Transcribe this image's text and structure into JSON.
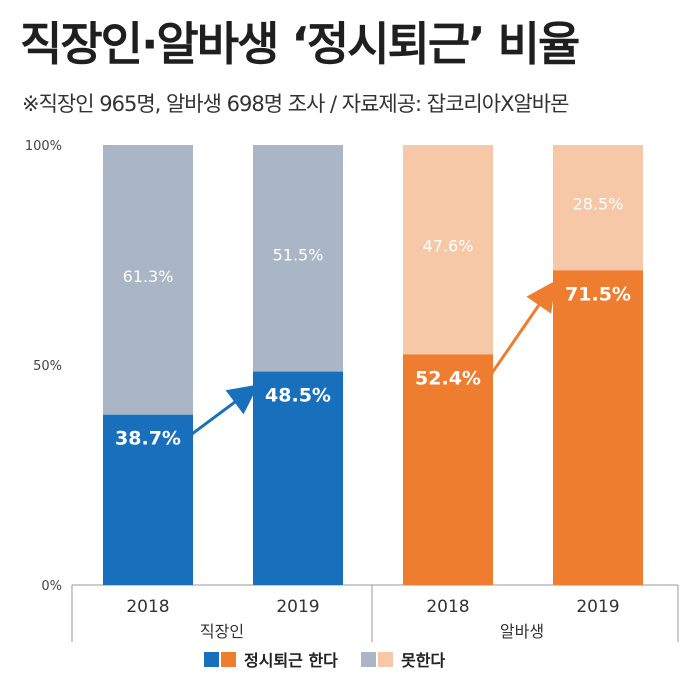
{
  "title": "직장인·알바생 ‘정시퇴근’ 비율",
  "subtitle": "※직장인 965명, 알바생 698명 조사 / 자료제공: 잡코리아X알바몬",
  "chart_data": {
    "type": "bar",
    "stacked": true,
    "ylim": [
      0,
      100
    ],
    "yticks": [
      "0%",
      "50%",
      "100%"
    ],
    "groups": [
      {
        "label": "직장인",
        "categories": [
          "2018",
          "2019"
        ],
        "segments": {
          "does": [
            38.7,
            48.5
          ],
          "doesnt": [
            61.3,
            51.5
          ]
        },
        "labels": {
          "does": [
            "38.7%",
            "48.5%"
          ],
          "doesnt": [
            "61.3%",
            "51.5%"
          ]
        }
      },
      {
        "label": "알바생",
        "categories": [
          "2018",
          "2019"
        ],
        "segments": {
          "does": [
            52.4,
            71.5
          ],
          "doesnt": [
            47.6,
            28.5
          ]
        },
        "labels": {
          "does": [
            "52.4%",
            "71.5%"
          ],
          "doesnt": [
            "47.6%",
            "28.5%"
          ]
        }
      }
    ],
    "series": [
      {
        "name": "정시퇴근 한다",
        "key": "does"
      },
      {
        "name": "못한다",
        "key": "doesnt"
      }
    ],
    "grid": false,
    "legend": "bottom-center"
  },
  "colors": {
    "worker_dark": "#1870bd",
    "worker_light": "#aab5c6",
    "alba_dark": "#ee7d30",
    "alba_light": "#f6c8a7",
    "arrow_worker": "#1870bd",
    "arrow_alba": "#ee7d30",
    "axis": "#999999"
  }
}
